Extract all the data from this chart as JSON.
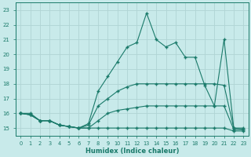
{
  "xlabel": "Humidex (Indice chaleur)",
  "bg_color": "#c8eaea",
  "grid_color": "#b0d4d4",
  "line_color": "#1a7a6a",
  "xlim": [
    -0.5,
    23.5
  ],
  "ylim": [
    14.5,
    23.5
  ],
  "yticks": [
    15,
    16,
    17,
    18,
    19,
    20,
    21,
    22,
    23
  ],
  "xticks": [
    0,
    1,
    2,
    3,
    4,
    5,
    6,
    7,
    8,
    9,
    10,
    11,
    12,
    13,
    14,
    15,
    16,
    17,
    18,
    19,
    20,
    21,
    22,
    23
  ],
  "lines": [
    {
      "x": [
        0,
        1,
        2,
        3,
        4,
        5,
        6,
        7,
        8,
        9,
        10,
        11,
        12,
        13,
        14,
        15,
        16,
        17,
        18,
        19,
        20,
        21,
        22,
        23
      ],
      "y": [
        16.0,
        16.0,
        15.5,
        15.5,
        15.2,
        15.1,
        15.0,
        15.0,
        15.0,
        15.0,
        15.0,
        15.0,
        15.0,
        15.0,
        15.0,
        15.0,
        15.0,
        15.0,
        15.0,
        15.0,
        15.0,
        15.0,
        14.8,
        14.8
      ]
    },
    {
      "x": [
        0,
        1,
        2,
        3,
        4,
        5,
        6,
        7,
        8,
        9,
        10,
        11,
        12,
        13,
        14,
        15,
        16,
        17,
        18,
        19,
        20,
        21,
        22,
        23
      ],
      "y": [
        16.0,
        15.9,
        15.5,
        15.5,
        15.2,
        15.1,
        15.0,
        15.0,
        15.5,
        16.0,
        16.2,
        16.3,
        16.4,
        16.5,
        16.5,
        16.5,
        16.5,
        16.5,
        16.5,
        16.5,
        16.5,
        16.5,
        14.9,
        14.9
      ]
    },
    {
      "x": [
        0,
        1,
        2,
        3,
        4,
        5,
        6,
        7,
        8,
        9,
        10,
        11,
        12,
        13,
        14,
        15,
        16,
        17,
        18,
        19,
        20,
        21,
        22,
        23
      ],
      "y": [
        16.0,
        15.9,
        15.5,
        15.5,
        15.2,
        15.1,
        15.0,
        15.2,
        16.5,
        17.0,
        17.5,
        17.8,
        18.0,
        18.0,
        18.0,
        18.0,
        18.0,
        18.0,
        18.0,
        18.0,
        18.0,
        17.9,
        15.0,
        15.0
      ]
    },
    {
      "x": [
        0,
        1,
        2,
        3,
        4,
        5,
        6,
        7,
        8,
        9,
        10,
        11,
        12,
        13,
        14,
        15,
        16,
        17,
        18,
        19,
        20,
        21,
        22,
        23
      ],
      "y": [
        16.0,
        15.9,
        15.5,
        15.5,
        15.2,
        15.1,
        15.0,
        15.3,
        17.5,
        18.5,
        19.5,
        20.5,
        20.8,
        22.8,
        21.0,
        20.5,
        20.8,
        19.8,
        19.8,
        17.9,
        16.5,
        21.0,
        15.0,
        14.9
      ]
    }
  ]
}
